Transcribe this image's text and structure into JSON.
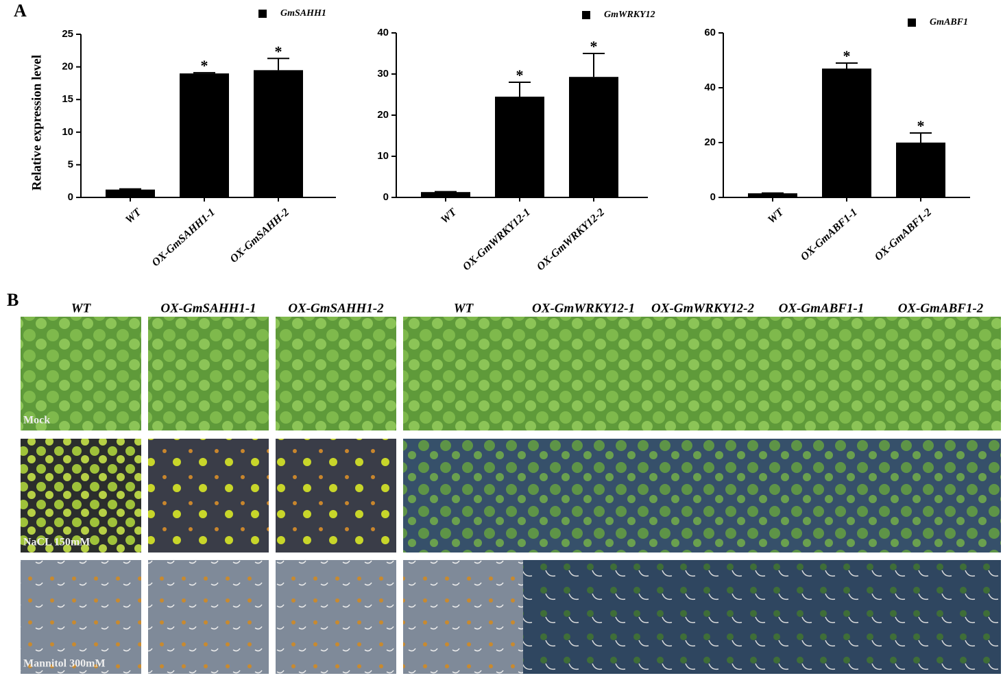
{
  "panel_labels": [
    "A",
    "B"
  ],
  "chart_data": [
    {
      "type": "bar",
      "y_label": "Relative expression level",
      "categories": [
        "WT",
        "OX-GmSAHH1-1",
        "OX-GmSAHH-2"
      ],
      "series": [
        {
          "name": "GmSAHH1",
          "color": "#000000",
          "values": [
            1.2,
            19,
            19.5
          ],
          "errors": [
            0.1,
            0.1,
            1.8
          ]
        }
      ],
      "annotations": [
        null,
        "*",
        "*"
      ],
      "ylim": [
        0,
        25
      ],
      "yticks": [
        0,
        5,
        10,
        15,
        20,
        25
      ]
    },
    {
      "type": "bar",
      "categories": [
        "WT",
        "OX-GmWRKY12-1",
        "OX-GmWRKY12-2"
      ],
      "series": [
        {
          "name": "GmWRKY12",
          "color": "#000000",
          "values": [
            1.3,
            24.5,
            29.3
          ],
          "errors": [
            0.1,
            3.5,
            5.7
          ]
        }
      ],
      "annotations": [
        null,
        "*",
        "*"
      ],
      "ylim": [
        0,
        40
      ],
      "yticks": [
        0,
        10,
        20,
        30,
        40
      ]
    },
    {
      "type": "bar",
      "categories": [
        "WT",
        "OX-GmABF1-1",
        "OX-GmABF1-2"
      ],
      "series": [
        {
          "name": "GmABF1",
          "color": "#000000",
          "values": [
            1.5,
            47,
            20
          ],
          "errors": [
            0.1,
            2,
            3.5
          ]
        }
      ],
      "annotations": [
        null,
        "*",
        "*"
      ],
      "ylim": [
        0,
        60
      ],
      "yticks": [
        0,
        20,
        40,
        60
      ]
    }
  ],
  "photo_grid": {
    "columns": [
      "WT",
      "OX-GmSAHH1-1",
      "OX-GmSAHH1-2",
      "WT",
      "OX-GmWRKY12-1",
      "OX-GmWRKY12-2",
      "OX-GmABF1-1",
      "OX-GmABF1-2"
    ],
    "rows": [
      "Mock",
      "NaCL 150mM",
      "Mannitol 300mM"
    ]
  }
}
